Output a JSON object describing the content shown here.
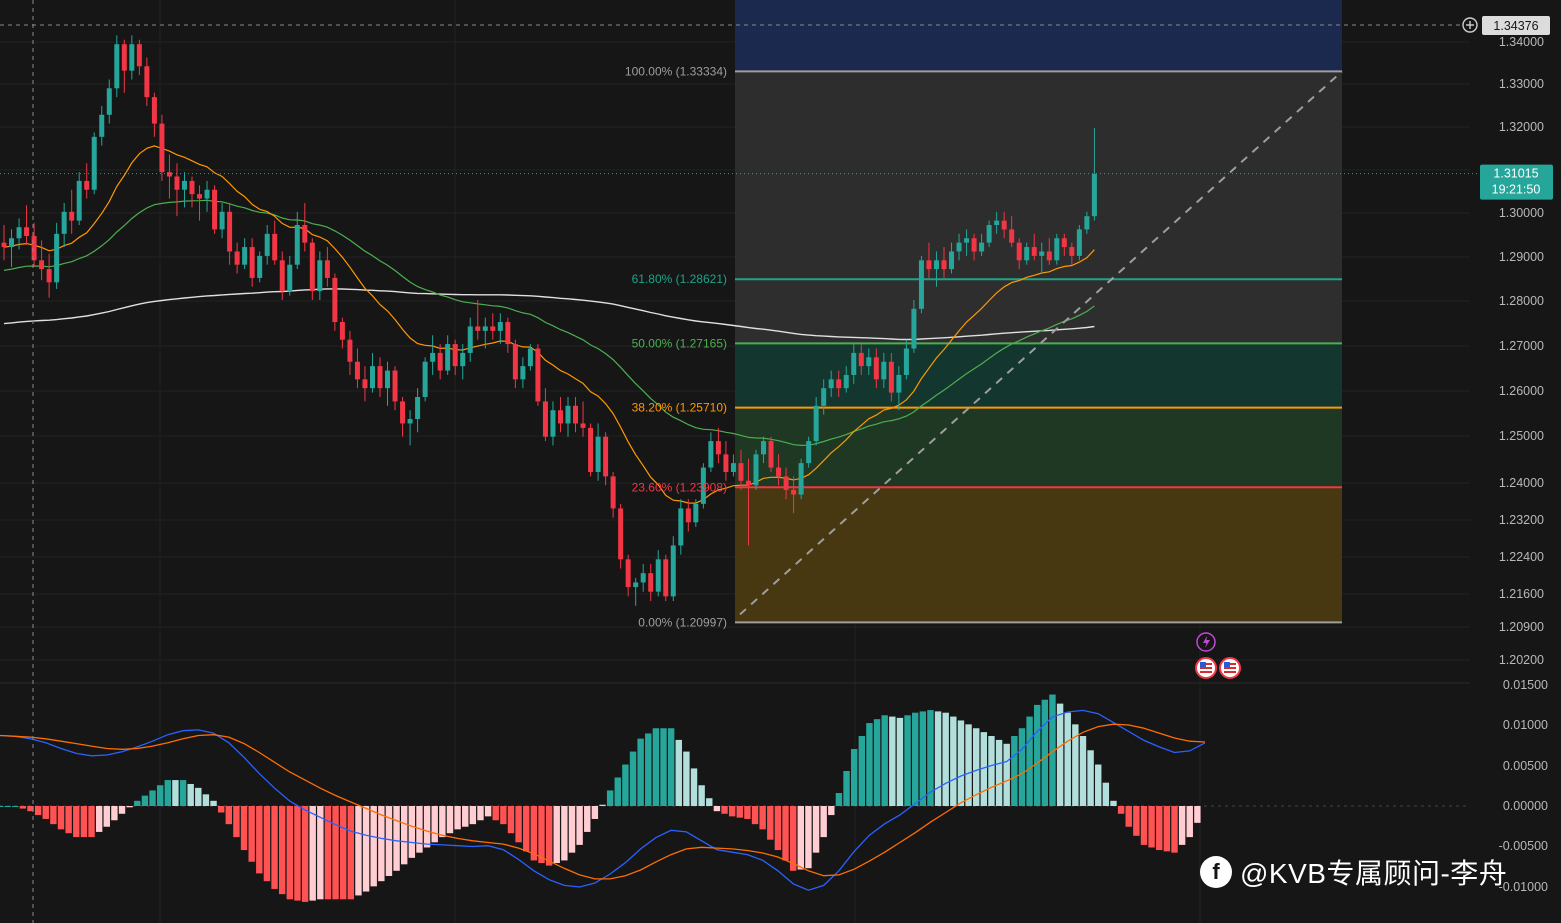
{
  "chart_data": [
    {
      "type": "candlestick",
      "y_axis_ticks": [
        "1.34000",
        "1.33000",
        "1.32000",
        "1.31000",
        "1.30000",
        "1.29000",
        "1.28000",
        "1.27000",
        "1.26000",
        "1.25000",
        "1.24000",
        "1.23200",
        "1.22400",
        "1.21600",
        "1.20900",
        "1.20200"
      ],
      "y_axis_ticks_nonlinear_bottom": true,
      "crosshair_price": "1.34376",
      "last_price": "1.31015",
      "countdown": "19:21:50",
      "fib_levels": [
        {
          "label": "100.00% (1.33334)",
          "ratio": 1.0,
          "price": 1.33334,
          "color": "#9e9e9e",
          "zone_color": "#2e2e2e"
        },
        {
          "label": "61.80% (1.28621)",
          "ratio": 0.618,
          "price": 1.28621,
          "color": "#1fa389",
          "zone_color": "#2f2f2f"
        },
        {
          "label": "50.00% (1.27165)",
          "ratio": 0.5,
          "price": 1.27165,
          "color": "#4caf50",
          "zone_color": "#13382f"
        },
        {
          "label": "38.20% (1.25710)",
          "ratio": 0.382,
          "price": 1.2571,
          "color": "#ff9800",
          "zone_color": "#1f3a25"
        },
        {
          "label": "23.60% (1.23908)",
          "ratio": 0.236,
          "price": 1.23908,
          "color": "#f23645",
          "zone_color": "#4a3a12"
        },
        {
          "label": "0.00% (1.20997)",
          "ratio": 0.0,
          "price": 1.20997,
          "color": "#9e9e9e",
          "zone_color": "#4a2226"
        }
      ],
      "fib_top_zone_color": "#1c2a52",
      "colors": {
        "up": "#26a69a",
        "down": "#f23645",
        "ema_fast": "#ff9800",
        "ema_mid": "#4caf50",
        "ma_long": "#e0e0e0",
        "trend": "#9e9e9e"
      },
      "candles": [
        [
          1.2945,
          1.2985,
          1.2905,
          1.2935
        ],
        [
          1.2935,
          1.2975,
          1.289,
          1.2955
        ],
        [
          1.2955,
          1.3,
          1.293,
          1.298
        ],
        [
          1.298,
          1.303,
          1.294,
          1.296
        ],
        [
          1.296,
          1.299,
          1.289,
          1.2905
        ],
        [
          1.2905,
          1.295,
          1.286,
          1.2885
        ],
        [
          1.2885,
          1.292,
          1.282,
          1.2855
        ],
        [
          1.2855,
          1.299,
          1.284,
          1.2965
        ],
        [
          1.2965,
          1.3035,
          1.2935,
          1.3015
        ],
        [
          1.3015,
          1.3065,
          1.2965,
          1.2995
        ],
        [
          1.2995,
          1.3105,
          1.2985,
          1.3085
        ],
        [
          1.3085,
          1.3125,
          1.3045,
          1.3065
        ],
        [
          1.3065,
          1.3195,
          1.3055,
          1.3185
        ],
        [
          1.3185,
          1.3255,
          1.3165,
          1.3235
        ],
        [
          1.3235,
          1.3315,
          1.3215,
          1.3295
        ],
        [
          1.3295,
          1.3415,
          1.3275,
          1.3395
        ],
        [
          1.3395,
          1.3405,
          1.3285,
          1.3335
        ],
        [
          1.3335,
          1.3415,
          1.3315,
          1.3395
        ],
        [
          1.3395,
          1.3405,
          1.3325,
          1.3345
        ],
        [
          1.3345,
          1.3365,
          1.3255,
          1.3275
        ],
        [
          1.3275,
          1.3285,
          1.3185,
          1.3215
        ],
        [
          1.3215,
          1.3235,
          1.3085,
          1.3105
        ],
        [
          1.3105,
          1.3145,
          1.3045,
          1.3095
        ],
        [
          1.3095,
          1.3125,
          1.3005,
          1.3065
        ],
        [
          1.3065,
          1.3105,
          1.3025,
          1.3085
        ],
        [
          1.3085,
          1.3095,
          1.3025,
          1.3055
        ],
        [
          1.3055,
          1.3075,
          1.2995,
          1.3045
        ],
        [
          1.3045,
          1.3085,
          1.3015,
          1.3065
        ],
        [
          1.3065,
          1.3075,
          1.2965,
          1.2975
        ],
        [
          1.2975,
          1.3035,
          1.2955,
          1.3015
        ],
        [
          1.3015,
          1.3035,
          1.2895,
          1.2925
        ],
        [
          1.2925,
          1.2945,
          1.2875,
          1.2895
        ],
        [
          1.2895,
          1.2955,
          1.2885,
          1.2935
        ],
        [
          1.2935,
          1.2955,
          1.2845,
          1.2865
        ],
        [
          1.2865,
          1.2925,
          1.2855,
          1.2915
        ],
        [
          1.2915,
          1.2985,
          1.2895,
          1.2965
        ],
        [
          1.2965,
          1.2995,
          1.2895,
          1.2905
        ],
        [
          1.2905,
          1.2925,
          1.2815,
          1.2835
        ],
        [
          1.2835,
          1.2915,
          1.2825,
          1.2895
        ],
        [
          1.2895,
          1.3015,
          1.2885,
          1.2985
        ],
        [
          1.2985,
          1.3035,
          1.2925,
          1.2945
        ],
        [
          1.2945,
          1.2955,
          1.2815,
          1.2835
        ],
        [
          1.2835,
          1.2925,
          1.2815,
          1.2905
        ],
        [
          1.2905,
          1.2935,
          1.2845,
          1.2865
        ],
        [
          1.2865,
          1.2875,
          1.2745,
          1.2765
        ],
        [
          1.2765,
          1.2775,
          1.2705,
          1.2725
        ],
        [
          1.2725,
          1.2745,
          1.2645,
          1.2675
        ],
        [
          1.2675,
          1.2705,
          1.2615,
          1.2635
        ],
        [
          1.2635,
          1.2665,
          1.2585,
          1.2615
        ],
        [
          1.2615,
          1.2695,
          1.2605,
          1.2665
        ],
        [
          1.2665,
          1.2685,
          1.2595,
          1.2615
        ],
        [
          1.2615,
          1.2675,
          1.2575,
          1.2655
        ],
        [
          1.2655,
          1.2665,
          1.2565,
          1.2585
        ],
        [
          1.2585,
          1.2595,
          1.2505,
          1.2535
        ],
        [
          1.2535,
          1.2565,
          1.2485,
          1.2545
        ],
        [
          1.2545,
          1.2615,
          1.2515,
          1.2595
        ],
        [
          1.2595,
          1.2685,
          1.2585,
          1.2675
        ],
        [
          1.2675,
          1.2735,
          1.2645,
          1.2695
        ],
        [
          1.2695,
          1.2715,
          1.2635,
          1.2655
        ],
        [
          1.2655,
          1.2735,
          1.2645,
          1.2715
        ],
        [
          1.2715,
          1.2725,
          1.2645,
          1.2665
        ],
        [
          1.2665,
          1.2715,
          1.2635,
          1.2695
        ],
        [
          1.2695,
          1.2775,
          1.2675,
          1.2755
        ],
        [
          1.2755,
          1.2815,
          1.2725,
          1.2745
        ],
        [
          1.2745,
          1.2775,
          1.2705,
          1.2755
        ],
        [
          1.2755,
          1.2785,
          1.2725,
          1.2745
        ],
        [
          1.2745,
          1.2785,
          1.2715,
          1.2765
        ],
        [
          1.2765,
          1.2775,
          1.2695,
          1.2715
        ],
        [
          1.2715,
          1.2725,
          1.2615,
          1.2635
        ],
        [
          1.2635,
          1.2685,
          1.2615,
          1.2665
        ],
        [
          1.2665,
          1.2715,
          1.2655,
          1.2705
        ],
        [
          1.2705,
          1.2715,
          1.2575,
          1.2585
        ],
        [
          1.2585,
          1.2615,
          1.2495,
          1.2505
        ],
        [
          1.2505,
          1.2585,
          1.2485,
          1.2565
        ],
        [
          1.2565,
          1.2595,
          1.2515,
          1.2535
        ],
        [
          1.2535,
          1.2595,
          1.2505,
          1.2575
        ],
        [
          1.2575,
          1.2595,
          1.2515,
          1.2535
        ],
        [
          1.2535,
          1.2585,
          1.2505,
          1.2525
        ],
        [
          1.2525,
          1.2535,
          1.2415,
          1.2425
        ],
        [
          1.2425,
          1.2535,
          1.2405,
          1.2505
        ],
        [
          1.2505,
          1.2515,
          1.2395,
          1.2415
        ],
        [
          1.2415,
          1.2425,
          1.2325,
          1.2345
        ],
        [
          1.2345,
          1.2355,
          1.2215,
          1.2235
        ],
        [
          1.2235,
          1.2245,
          1.2155,
          1.2175
        ],
        [
          1.2175,
          1.2195,
          1.2135,
          1.2185
        ],
        [
          1.2185,
          1.2225,
          1.2165,
          1.2205
        ],
        [
          1.2205,
          1.2225,
          1.2145,
          1.2165
        ],
        [
          1.2165,
          1.2255,
          1.2155,
          1.2235
        ],
        [
          1.2235,
          1.2245,
          1.2145,
          1.2155
        ],
        [
          1.2155,
          1.2285,
          1.2145,
          1.2265
        ],
        [
          1.2265,
          1.2365,
          1.2245,
          1.2345
        ],
        [
          1.2345,
          1.2365,
          1.2295,
          1.2315
        ],
        [
          1.2315,
          1.2365,
          1.2305,
          1.2355
        ],
        [
          1.2355,
          1.2445,
          1.2345,
          1.2435
        ],
        [
          1.2435,
          1.2515,
          1.2425,
          1.2495
        ],
        [
          1.2495,
          1.2525,
          1.2445,
          1.2465
        ],
        [
          1.2465,
          1.2495,
          1.2405,
          1.2425
        ],
        [
          1.2425,
          1.2465,
          1.2415,
          1.2445
        ],
        [
          1.2445,
          1.2475,
          1.2385,
          1.2405
        ],
        [
          1.2405,
          1.2455,
          1.2265,
          1.2395
        ],
        [
          1.2395,
          1.2475,
          1.2385,
          1.2465
        ],
        [
          1.2465,
          1.2505,
          1.2445,
          1.2495
        ],
        [
          1.2495,
          1.2505,
          1.2425,
          1.2435
        ],
        [
          1.2435,
          1.2465,
          1.2395,
          1.2415
        ],
        [
          1.2415,
          1.2435,
          1.2365,
          1.2385
        ],
        [
          1.2385,
          1.2415,
          1.2335,
          1.2375
        ],
        [
          1.2375,
          1.2455,
          1.2365,
          1.2445
        ],
        [
          1.2445,
          1.2505,
          1.2435,
          1.2495
        ],
        [
          1.2495,
          1.2595,
          1.2485,
          1.2575
        ],
        [
          1.2575,
          1.2635,
          1.2555,
          1.2615
        ],
        [
          1.2615,
          1.2655,
          1.2595,
          1.2635
        ],
        [
          1.2635,
          1.2655,
          1.2595,
          1.2615
        ],
        [
          1.2615,
          1.2665,
          1.2605,
          1.2645
        ],
        [
          1.2645,
          1.2715,
          1.2625,
          1.2695
        ],
        [
          1.2695,
          1.2715,
          1.2645,
          1.2665
        ],
        [
          1.2665,
          1.2705,
          1.2645,
          1.2685
        ],
        [
          1.2685,
          1.2705,
          1.2615,
          1.2635
        ],
        [
          1.2635,
          1.2695,
          1.2615,
          1.2675
        ],
        [
          1.2675,
          1.2695,
          1.2585,
          1.2605
        ],
        [
          1.2605,
          1.2665,
          1.2565,
          1.2645
        ],
        [
          1.2645,
          1.2725,
          1.2635,
          1.2705
        ],
        [
          1.2705,
          1.2815,
          1.2695,
          1.2795
        ],
        [
          1.2795,
          1.2915,
          1.2785,
          1.2905
        ],
        [
          1.2905,
          1.2945,
          1.2865,
          1.2885
        ],
        [
          1.2885,
          1.2925,
          1.2845,
          1.2905
        ],
        [
          1.2905,
          1.2935,
          1.2865,
          1.2885
        ],
        [
          1.2885,
          1.2945,
          1.2875,
          1.2925
        ],
        [
          1.2925,
          1.2965,
          1.2905,
          1.2945
        ],
        [
          1.2945,
          1.2975,
          1.2915,
          1.2955
        ],
        [
          1.2955,
          1.2965,
          1.2905,
          1.2925
        ],
        [
          1.2925,
          1.2965,
          1.2915,
          1.2945
        ],
        [
          1.2945,
          1.2995,
          1.2935,
          1.2985
        ],
        [
          1.2985,
          1.3015,
          1.2965,
          1.2995
        ],
        [
          1.2995,
          1.3015,
          1.2955,
          1.2975
        ],
        [
          1.2975,
          1.3005,
          1.2935,
          1.2945
        ],
        [
          1.2945,
          1.2955,
          1.2885,
          1.2905
        ],
        [
          1.2905,
          1.2945,
          1.2895,
          1.2935
        ],
        [
          1.2935,
          1.2965,
          1.2905,
          1.2915
        ],
        [
          1.2915,
          1.2945,
          1.2875,
          1.2925
        ],
        [
          1.2925,
          1.2955,
          1.2895,
          1.2905
        ],
        [
          1.2905,
          1.2965,
          1.2895,
          1.2955
        ],
        [
          1.2955,
          1.2965,
          1.2915,
          1.2935
        ],
        [
          1.2935,
          1.2945,
          1.2895,
          1.2915
        ],
        [
          1.2915,
          1.2985,
          1.2905,
          1.2975
        ],
        [
          1.2975,
          1.3015,
          1.2965,
          1.3005
        ],
        [
          1.3005,
          1.3205,
          1.2995,
          1.3101
        ]
      ]
    },
    {
      "type": "macd",
      "y_axis_ticks": [
        "0.01500",
        "0.01000",
        "0.00500",
        "0.00000",
        "-0.00500",
        "-0.01000"
      ],
      "ylim": [
        -0.0123,
        0.0152
      ],
      "macd": [
        0.0087,
        0.0086,
        0.0083,
        0.0078,
        0.0071,
        0.0065,
        0.0062,
        0.0063,
        0.0067,
        0.0073,
        0.008,
        0.0088,
        0.0093,
        0.0094,
        0.009,
        0.0078,
        0.006,
        0.004,
        0.0022,
        0.0006,
        -0.0005,
        -0.0014,
        -0.0023,
        -0.0031,
        -0.0036,
        -0.004,
        -0.0043,
        -0.0045,
        -0.0047,
        -0.0048,
        -0.0049,
        -0.005,
        -0.0049,
        -0.0054,
        -0.0066,
        -0.008,
        -0.0091,
        -0.0098,
        -0.01,
        -0.0095,
        -0.0084,
        -0.007,
        -0.0053,
        -0.0039,
        -0.003,
        -0.0032,
        -0.0043,
        -0.0054,
        -0.0057,
        -0.006,
        -0.0067,
        -0.008,
        -0.0096,
        -0.0104,
        -0.0098,
        -0.008,
        -0.0056,
        -0.0036,
        -0.0022,
        -0.0011,
        0.0003,
        0.0017,
        0.0028,
        0.0037,
        0.0044,
        0.005,
        0.0055,
        0.007,
        0.0092,
        0.011,
        0.0116,
        0.0118,
        0.0114,
        0.0103,
        0.0092,
        0.0081,
        0.0073,
        0.0066,
        0.0068,
        0.0078
      ],
      "signal": [
        0.0087,
        0.0086,
        0.0085,
        0.0083,
        0.008,
        0.0077,
        0.0074,
        0.0071,
        0.007,
        0.0071,
        0.0074,
        0.0078,
        0.0083,
        0.0087,
        0.0088,
        0.0085,
        0.0077,
        0.0066,
        0.0054,
        0.0042,
        0.0032,
        0.0022,
        0.0013,
        0.0005,
        -0.0003,
        -0.0011,
        -0.0018,
        -0.0025,
        -0.0031,
        -0.0036,
        -0.004,
        -0.0043,
        -0.0045,
        -0.0047,
        -0.0052,
        -0.0059,
        -0.0068,
        -0.0077,
        -0.0085,
        -0.009,
        -0.009,
        -0.0086,
        -0.0079,
        -0.0069,
        -0.006,
        -0.0053,
        -0.0051,
        -0.0052,
        -0.0053,
        -0.0055,
        -0.0058,
        -0.0063,
        -0.0071,
        -0.008,
        -0.0086,
        -0.0085,
        -0.0078,
        -0.0068,
        -0.0057,
        -0.0045,
        -0.0033,
        -0.002,
        -0.0008,
        0.0004,
        0.0014,
        0.0023,
        0.0031,
        0.004,
        0.0053,
        0.0067,
        0.008,
        0.0091,
        0.0098,
        0.0101,
        0.01,
        0.0096,
        0.009,
        0.0084,
        0.008,
        0.0079
      ]
    }
  ],
  "watermark": {
    "icon_letter": "f",
    "text": "@KVB专属顾问-李舟"
  }
}
